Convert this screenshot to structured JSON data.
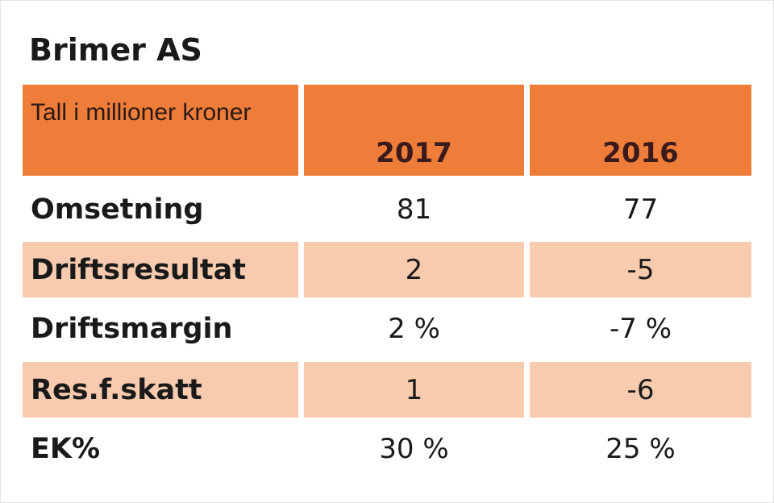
{
  "title": "Brimer AS",
  "table": {
    "header": [
      "Tall i millioner kroner",
      "2017",
      "2016"
    ],
    "rows": [
      [
        "Omsetning",
        "81",
        "77"
      ],
      [
        "Driftsresultat",
        "2",
        "-5"
      ],
      [
        "Driftsmargin",
        "2 %",
        "-7 %"
      ],
      [
        "Res.f.skatt",
        "1",
        "-6"
      ],
      [
        "EK%",
        "30 %",
        "25 %"
      ]
    ]
  }
}
